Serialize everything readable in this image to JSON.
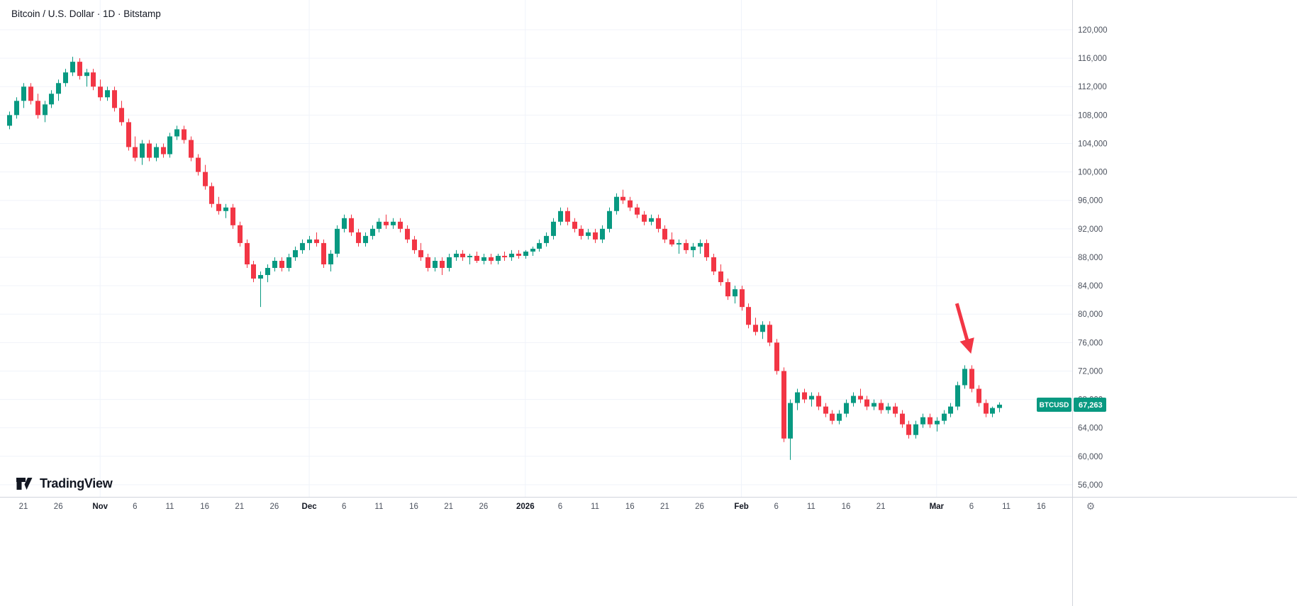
{
  "header": {
    "symbol_title": "Bitcoin / U.S. Dollar · 1D · Bitstamp"
  },
  "branding": {
    "logo_text": "TradingView"
  },
  "colors": {
    "up": "#089981",
    "down": "#f23645",
    "background": "#ffffff",
    "grid": "#f0f3fa",
    "axis_border": "#d1d4dc",
    "axis_text": "#4c525e",
    "arrow": "#f23645",
    "badge_bg": "#089981",
    "badge_text": "#ffffff",
    "gear": "#787b86"
  },
  "price_axis": {
    "badge": {
      "symbol": "BTCUSD",
      "price": "67,263",
      "value": 67263
    }
  },
  "time_axis": {
    "gear_icon": "⚙"
  },
  "annotations": {
    "arrow": {
      "from_i": 135.9,
      "from_price": 81500,
      "to_i": 137.8,
      "to_price": 74900,
      "width": 5
    }
  },
  "chart_data": {
    "type": "candlestick",
    "title": "Bitcoin / U.S. Dollar · 1D · Bitstamp",
    "symbol": "BTCUSD",
    "exchange": "Bitstamp",
    "interval": "1D",
    "start_date": "2025-10-19",
    "end_date": "2026-03-10",
    "last_close": 67263,
    "ylim": [
      56000,
      120000
    ],
    "y_ticks": [
      120000,
      116000,
      112000,
      108000,
      104000,
      100000,
      96000,
      92000,
      88000,
      84000,
      80000,
      76000,
      72000,
      68000,
      64000,
      60000,
      56000
    ],
    "x_ticks": [
      {
        "label": "21",
        "i": 2,
        "major": false
      },
      {
        "label": "26",
        "i": 7,
        "major": false
      },
      {
        "label": "Nov",
        "i": 13,
        "major": true
      },
      {
        "label": "6",
        "i": 18,
        "major": false
      },
      {
        "label": "11",
        "i": 23,
        "major": false
      },
      {
        "label": "16",
        "i": 28,
        "major": false
      },
      {
        "label": "21",
        "i": 33,
        "major": false
      },
      {
        "label": "26",
        "i": 38,
        "major": false
      },
      {
        "label": "Dec",
        "i": 43,
        "major": true
      },
      {
        "label": "6",
        "i": 48,
        "major": false
      },
      {
        "label": "11",
        "i": 53,
        "major": false
      },
      {
        "label": "16",
        "i": 58,
        "major": false
      },
      {
        "label": "21",
        "i": 63,
        "major": false
      },
      {
        "label": "26",
        "i": 68,
        "major": false
      },
      {
        "label": "2026",
        "i": 74,
        "major": true
      },
      {
        "label": "6",
        "i": 79,
        "major": false
      },
      {
        "label": "11",
        "i": 84,
        "major": false
      },
      {
        "label": "16",
        "i": 89,
        "major": false
      },
      {
        "label": "21",
        "i": 94,
        "major": false
      },
      {
        "label": "26",
        "i": 99,
        "major": false
      },
      {
        "label": "Feb",
        "i": 105,
        "major": true
      },
      {
        "label": "6",
        "i": 110,
        "major": false
      },
      {
        "label": "11",
        "i": 115,
        "major": false
      },
      {
        "label": "16",
        "i": 120,
        "major": false
      },
      {
        "label": "21",
        "i": 125,
        "major": false
      },
      {
        "label": "Mar",
        "i": 133,
        "major": true
      },
      {
        "label": "6",
        "i": 138,
        "major": false
      },
      {
        "label": "11",
        "i": 143,
        "major": false
      },
      {
        "label": "16",
        "i": 148,
        "major": false
      }
    ],
    "candles": [
      [
        106500,
        108500,
        106000,
        108000
      ],
      [
        108000,
        110500,
        107500,
        110000
      ],
      [
        110000,
        112500,
        109000,
        112000
      ],
      [
        112000,
        112500,
        109500,
        110000
      ],
      [
        110000,
        111000,
        107500,
        108000
      ],
      [
        108000,
        110000,
        107000,
        109500
      ],
      [
        109500,
        111500,
        109000,
        111000
      ],
      [
        111000,
        113000,
        110000,
        112500
      ],
      [
        112500,
        114500,
        112000,
        114000
      ],
      [
        114000,
        116200,
        113500,
        115500
      ],
      [
        115500,
        116000,
        113000,
        113500
      ],
      [
        113500,
        114500,
        112000,
        114000
      ],
      [
        114000,
        114500,
        111500,
        112000
      ],
      [
        112000,
        113000,
        110000,
        110500
      ],
      [
        110500,
        112000,
        110000,
        111500
      ],
      [
        111500,
        112000,
        108500,
        109000
      ],
      [
        109000,
        110000,
        106500,
        107000
      ],
      [
        107000,
        107500,
        103000,
        103500
      ],
      [
        103500,
        105000,
        101500,
        102000
      ],
      [
        102000,
        104500,
        101000,
        104000
      ],
      [
        104000,
        104500,
        101500,
        102000
      ],
      [
        102000,
        104000,
        101500,
        103500
      ],
      [
        103500,
        104000,
        102000,
        102500
      ],
      [
        102500,
        105500,
        102000,
        105000
      ],
      [
        105000,
        106500,
        104500,
        106000
      ],
      [
        106000,
        106500,
        104000,
        104500
      ],
      [
        104500,
        105000,
        101500,
        102000
      ],
      [
        102000,
        102500,
        99500,
        100000
      ],
      [
        100000,
        101000,
        97500,
        98000
      ],
      [
        98000,
        98500,
        95000,
        95500
      ],
      [
        95500,
        96500,
        94000,
        94500
      ],
      [
        94500,
        95500,
        93500,
        95000
      ],
      [
        95000,
        95500,
        92000,
        92500
      ],
      [
        92500,
        93000,
        89500,
        90000
      ],
      [
        90000,
        90500,
        86500,
        87000
      ],
      [
        87000,
        87500,
        84500,
        85000
      ],
      [
        85000,
        86000,
        81000,
        85500
      ],
      [
        85500,
        87000,
        84500,
        86500
      ],
      [
        86500,
        88000,
        86000,
        87500
      ],
      [
        87500,
        88000,
        86000,
        86500
      ],
      [
        86500,
        88500,
        86000,
        88000
      ],
      [
        88000,
        89500,
        87500,
        89000
      ],
      [
        89000,
        90500,
        88500,
        90000
      ],
      [
        90000,
        91000,
        89000,
        90500
      ],
      [
        90500,
        91500,
        89500,
        90000
      ],
      [
        90000,
        90500,
        86500,
        87000
      ],
      [
        87000,
        89000,
        86000,
        88500
      ],
      [
        88500,
        92500,
        88000,
        92000
      ],
      [
        92000,
        94000,
        91500,
        93500
      ],
      [
        93500,
        94000,
        91000,
        91500
      ],
      [
        91500,
        92000,
        89500,
        90000
      ],
      [
        90000,
        91500,
        89500,
        91000
      ],
      [
        91000,
        92500,
        90500,
        92000
      ],
      [
        92000,
        93500,
        91500,
        93000
      ],
      [
        93000,
        94000,
        92000,
        92500
      ],
      [
        92500,
        93500,
        92000,
        93000
      ],
      [
        93000,
        93500,
        91500,
        92000
      ],
      [
        92000,
        92500,
        90000,
        90500
      ],
      [
        90500,
        91000,
        88500,
        89000
      ],
      [
        89000,
        90000,
        87500,
        88000
      ],
      [
        88000,
        88500,
        86000,
        86500
      ],
      [
        86500,
        88000,
        86000,
        87500
      ],
      [
        87500,
        88000,
        85500,
        86500
      ],
      [
        86500,
        88500,
        86000,
        88000
      ],
      [
        88000,
        89000,
        87500,
        88500
      ],
      [
        88500,
        89000,
        87500,
        88000
      ],
      [
        88000,
        88500,
        87000,
        88200
      ],
      [
        88200,
        88800,
        87200,
        87500
      ],
      [
        87500,
        88500,
        87000,
        88000
      ],
      [
        88000,
        88500,
        87000,
        87500
      ],
      [
        87500,
        88500,
        87000,
        88200
      ],
      [
        88200,
        88800,
        87500,
        88000
      ],
      [
        88000,
        89000,
        87500,
        88500
      ],
      [
        88500,
        89000,
        87800,
        88200
      ],
      [
        88200,
        89000,
        87800,
        88800
      ],
      [
        88800,
        89500,
        88200,
        89200
      ],
      [
        89200,
        90500,
        88800,
        90000
      ],
      [
        90000,
        91500,
        89500,
        91000
      ],
      [
        91000,
        93500,
        90500,
        93000
      ],
      [
        93000,
        95000,
        92500,
        94500
      ],
      [
        94500,
        95000,
        92500,
        93000
      ],
      [
        93000,
        93500,
        91500,
        92000
      ],
      [
        92000,
        92500,
        90500,
        91000
      ],
      [
        91000,
        92000,
        90500,
        91500
      ],
      [
        91500,
        92000,
        90000,
        90500
      ],
      [
        90500,
        92500,
        90000,
        92000
      ],
      [
        92000,
        95000,
        91500,
        94500
      ],
      [
        94500,
        97000,
        94000,
        96500
      ],
      [
        96500,
        97500,
        95500,
        96000
      ],
      [
        96000,
        96500,
        94500,
        95000
      ],
      [
        95000,
        95500,
        93500,
        94000
      ],
      [
        94000,
        94500,
        92500,
        93000
      ],
      [
        93000,
        94000,
        92500,
        93500
      ],
      [
        93500,
        94000,
        91500,
        92000
      ],
      [
        92000,
        92500,
        90000,
        90500
      ],
      [
        90500,
        91500,
        89500,
        89800
      ],
      [
        89800,
        90500,
        88500,
        90000
      ],
      [
        90000,
        90500,
        88500,
        89000
      ],
      [
        89000,
        90000,
        88000,
        89500
      ],
      [
        89500,
        90500,
        88500,
        90000
      ],
      [
        90000,
        90500,
        87500,
        88000
      ],
      [
        88000,
        88500,
        85500,
        86000
      ],
      [
        86000,
        87000,
        84000,
        84500
      ],
      [
        84500,
        85000,
        82000,
        82500
      ],
      [
        82500,
        84000,
        81500,
        83500
      ],
      [
        83500,
        84000,
        80500,
        81000
      ],
      [
        81000,
        81500,
        78000,
        78500
      ],
      [
        78500,
        79500,
        77000,
        77500
      ],
      [
        77500,
        79000,
        76500,
        78500
      ],
      [
        78500,
        79000,
        75500,
        76000
      ],
      [
        76000,
        76500,
        71500,
        72000
      ],
      [
        72000,
        72500,
        62000,
        62500
      ],
      [
        62500,
        68000,
        59500,
        67500
      ],
      [
        67500,
        69500,
        66500,
        69000
      ],
      [
        69000,
        69500,
        67500,
        68000
      ],
      [
        68000,
        69000,
        67000,
        68500
      ],
      [
        68500,
        69000,
        66500,
        67000
      ],
      [
        67000,
        67500,
        65500,
        66000
      ],
      [
        66000,
        66500,
        64500,
        65000
      ],
      [
        65000,
        66500,
        64500,
        66000
      ],
      [
        66000,
        68000,
        65500,
        67500
      ],
      [
        67500,
        69000,
        67000,
        68500
      ],
      [
        68500,
        69500,
        67500,
        68000
      ],
      [
        68000,
        68500,
        66500,
        67000
      ],
      [
        67000,
        68000,
        66500,
        67500
      ],
      [
        67500,
        68000,
        66000,
        66500
      ],
      [
        66500,
        67500,
        66000,
        67000
      ],
      [
        67000,
        67500,
        65500,
        66000
      ],
      [
        66000,
        66500,
        64000,
        64500
      ],
      [
        64500,
        65000,
        62500,
        63000
      ],
      [
        63000,
        65000,
        62500,
        64500
      ],
      [
        64500,
        66000,
        64000,
        65500
      ],
      [
        65500,
        66000,
        64000,
        64500
      ],
      [
        64500,
        65500,
        63500,
        65000
      ],
      [
        65000,
        66500,
        64500,
        66000
      ],
      [
        66000,
        67500,
        65500,
        67000
      ],
      [
        67000,
        70500,
        66500,
        70000
      ],
      [
        70000,
        72800,
        69500,
        72300
      ],
      [
        72300,
        72800,
        69000,
        69500
      ],
      [
        69500,
        70000,
        67000,
        67500
      ],
      [
        67500,
        68000,
        65500,
        66000
      ],
      [
        66000,
        67000,
        65500,
        66800
      ],
      [
        66800,
        67600,
        66200,
        67263
      ]
    ]
  }
}
